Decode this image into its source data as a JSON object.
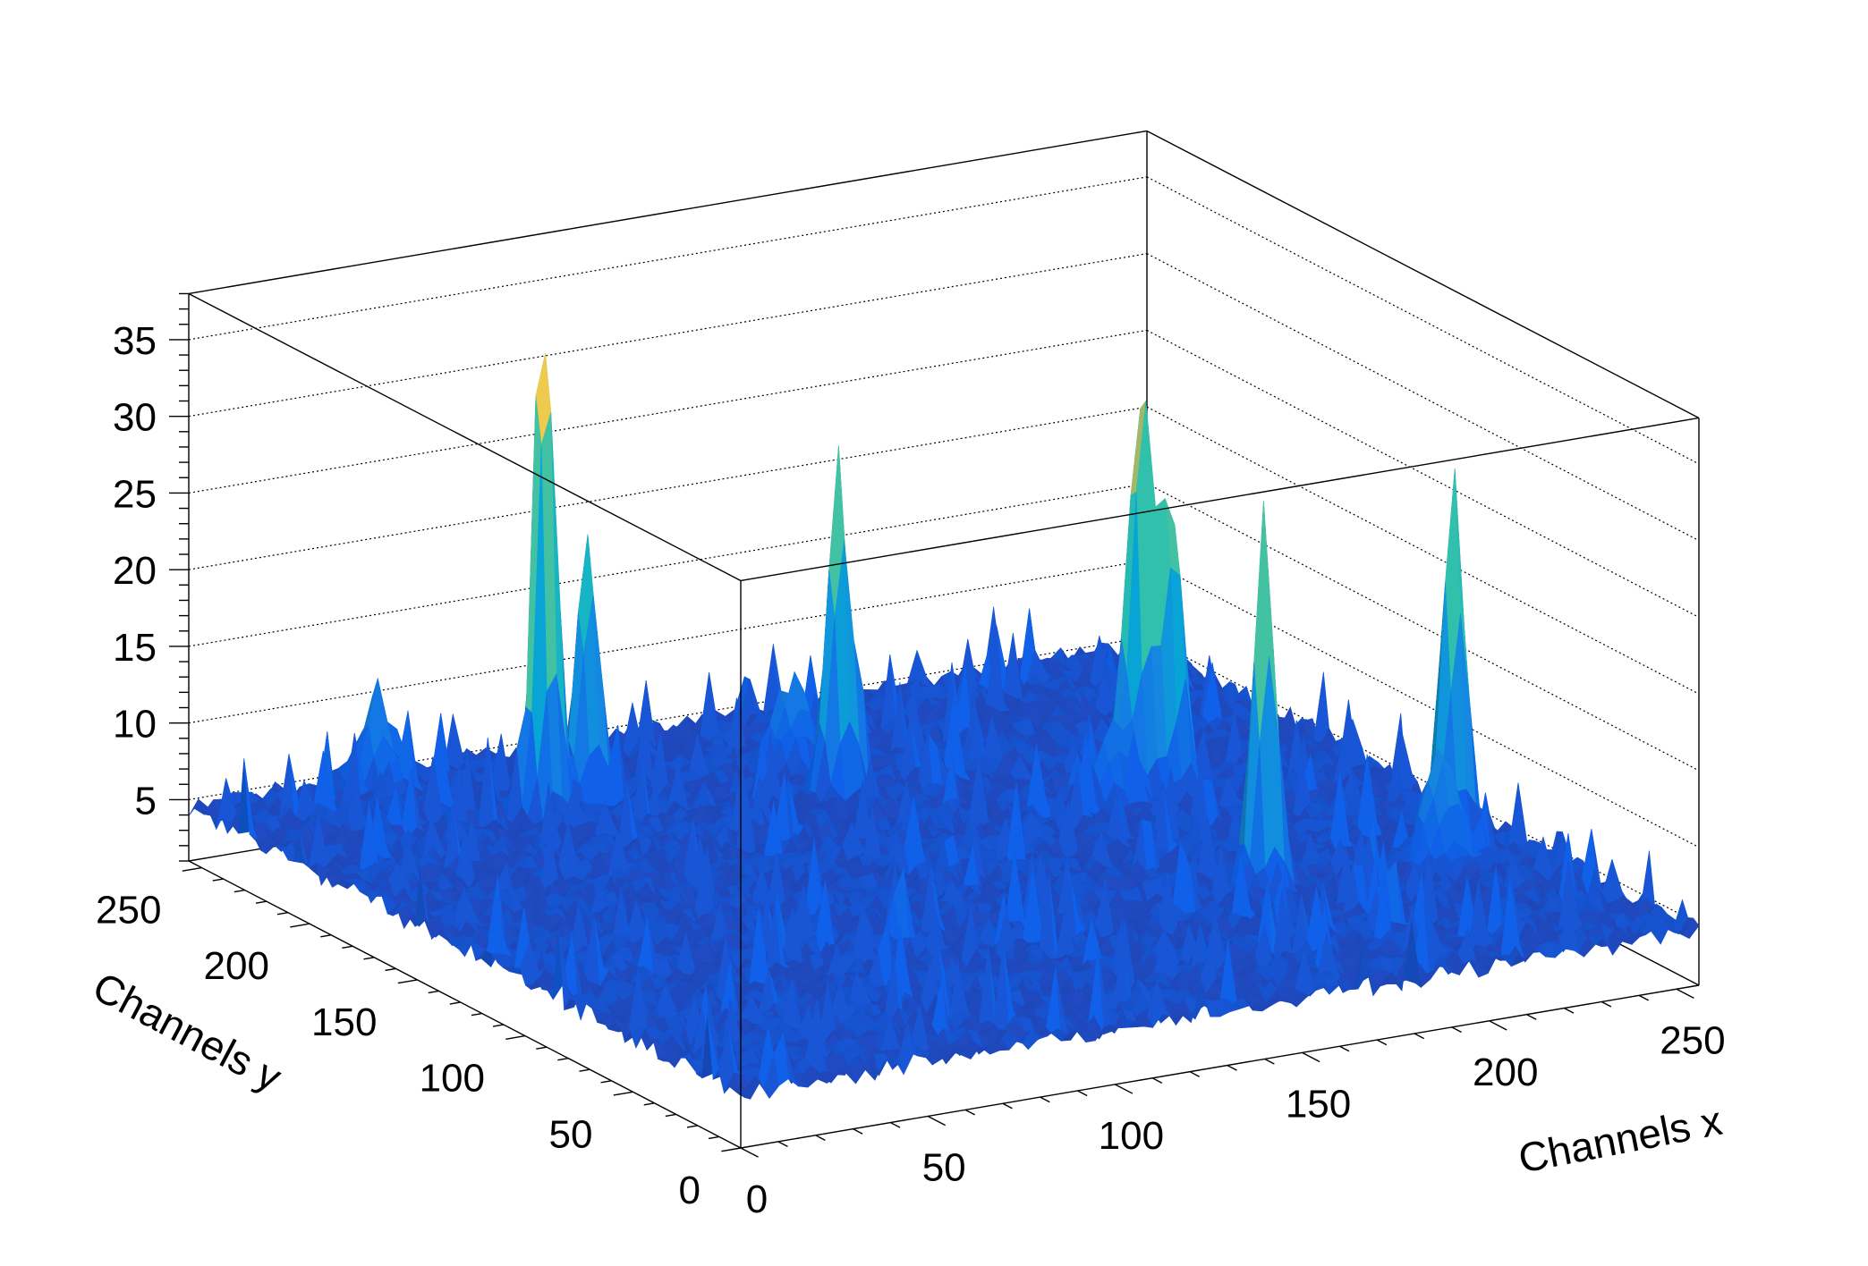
{
  "chart_data": {
    "type": "surface",
    "title": "",
    "xlabel": "Channels x",
    "ylabel": "Channels y",
    "zlabel": "",
    "xlim": [
      0,
      256
    ],
    "ylim": [
      0,
      256
    ],
    "zlim": [
      1,
      38
    ],
    "grid": "z gridlines on back walls (dotted)",
    "palette": "kBird",
    "background_level": 4.5,
    "x_ticks": [
      "0",
      "50",
      "100",
      "150",
      "200",
      "250"
    ],
    "y_ticks": [
      "0",
      "50",
      "100",
      "150",
      "200",
      "250"
    ],
    "z_ticks": [
      "5",
      "10",
      "15",
      "20",
      "25",
      "30",
      "35"
    ],
    "peaks": [
      {
        "x": 71,
        "y": 214,
        "height": 37
      },
      {
        "x": 84,
        "y": 217,
        "height": 22
      },
      {
        "x": 138,
        "y": 194,
        "height": 27
      },
      {
        "x": 199,
        "y": 160,
        "height": 32
      },
      {
        "x": 206,
        "y": 158,
        "height": 24
      },
      {
        "x": 187,
        "y": 82,
        "height": 29
      },
      {
        "x": 248,
        "y": 100,
        "height": 28
      },
      {
        "x": 47,
        "y": 250,
        "height": 10
      },
      {
        "x": 231,
        "y": 76,
        "height": 12
      },
      {
        "x": 138,
        "y": 216,
        "height": 10
      },
      {
        "x": 190,
        "y": 157,
        "height": 9
      }
    ]
  },
  "colors": {
    "axis": "#000000",
    "grid": "#000000",
    "background": "#ffffff"
  }
}
